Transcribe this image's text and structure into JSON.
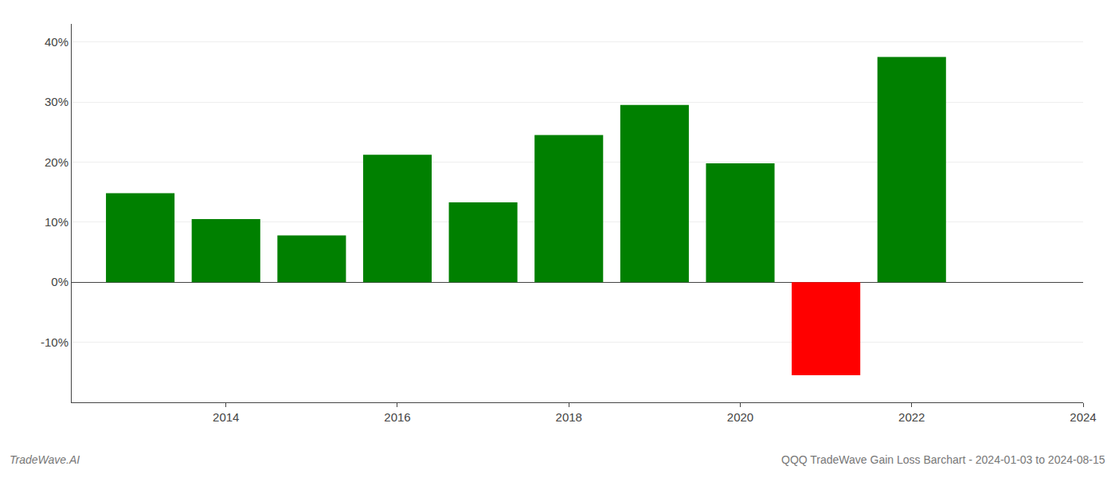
{
  "chart_data": {
    "type": "bar",
    "title": "QQQ TradeWave Gain Loss Barchart - 2024-01-03 to 2024-08-15",
    "annotations": [
      {
        "text": "TradeWave.AI"
      }
    ],
    "x": [
      2013,
      2014,
      2015,
      2016,
      2017,
      2018,
      2019,
      2020,
      2021,
      2022
    ],
    "values": [
      14.8,
      10.5,
      7.8,
      21.2,
      13.3,
      24.5,
      29.5,
      19.8,
      -15.5,
      37.5
    ],
    "colors": [
      "#008000",
      "#008000",
      "#008000",
      "#008000",
      "#008000",
      "#008000",
      "#008000",
      "#008000",
      "#ff0000",
      "#008000"
    ],
    "xlim": [
      2012.2,
      2024.0
    ],
    "xticks": [
      2014,
      2016,
      2018,
      2020,
      2022,
      2024
    ],
    "ylim": [
      -20,
      43
    ],
    "yticks": [
      {
        "value": -10,
        "label": "-10%"
      },
      {
        "value": 0,
        "label": "0%"
      },
      {
        "value": 10,
        "label": "10%"
      },
      {
        "value": 20,
        "label": "20%"
      },
      {
        "value": 30,
        "label": "30%"
      },
      {
        "value": 40,
        "label": "40%"
      }
    ],
    "grid": true
  }
}
